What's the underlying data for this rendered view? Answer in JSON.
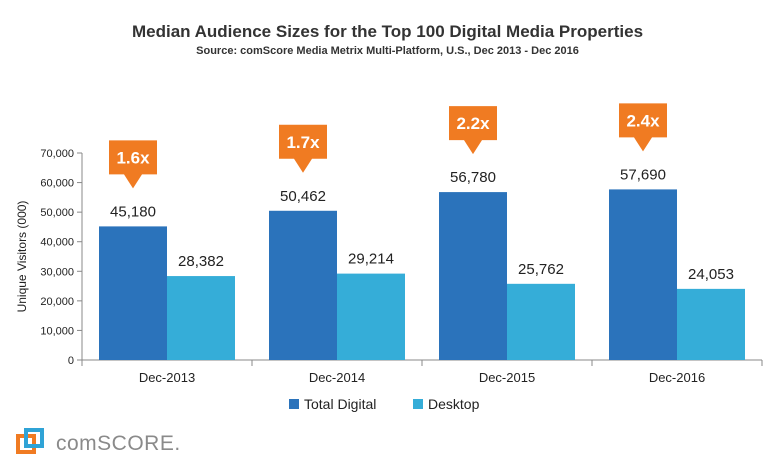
{
  "chart_data": {
    "type": "bar",
    "title": "Median Audience Sizes for the Top 100 Digital Media Properties",
    "subtitle": "Source: comScore Media Metrix Multi-Platform, U.S., Dec 2013 - Dec 2016",
    "ylabel": "Unique Visitors (000)",
    "xlabel": "",
    "ylim": [
      0,
      70000
    ],
    "yticks": [
      0,
      10000,
      20000,
      30000,
      40000,
      50000,
      60000,
      70000
    ],
    "ytick_labels": [
      "0",
      "10,000",
      "20,000",
      "30,000",
      "40,000",
      "50,000",
      "60,000",
      "70,000"
    ],
    "categories": [
      "Dec-2013",
      "Dec-2014",
      "Dec-2015",
      "Dec-2016"
    ],
    "series": [
      {
        "name": "Total Digital",
        "color": "#2b73bb",
        "values": [
          45180,
          50462,
          56780,
          57690
        ],
        "labels": [
          "45,180",
          "50,462",
          "56,780",
          "57,690"
        ]
      },
      {
        "name": "Desktop",
        "color": "#35add8",
        "values": [
          28382,
          29214,
          25762,
          24053
        ],
        "labels": [
          "28,382",
          "29,214",
          "25,762",
          "24,053"
        ]
      }
    ],
    "annotations": [
      "1.6x",
      "1.7x",
      "2.2x",
      "2.4x"
    ],
    "annotation_color": "#f07b22",
    "grid": false,
    "legend_position": "bottom"
  },
  "logo": {
    "text": "comSCORE."
  }
}
